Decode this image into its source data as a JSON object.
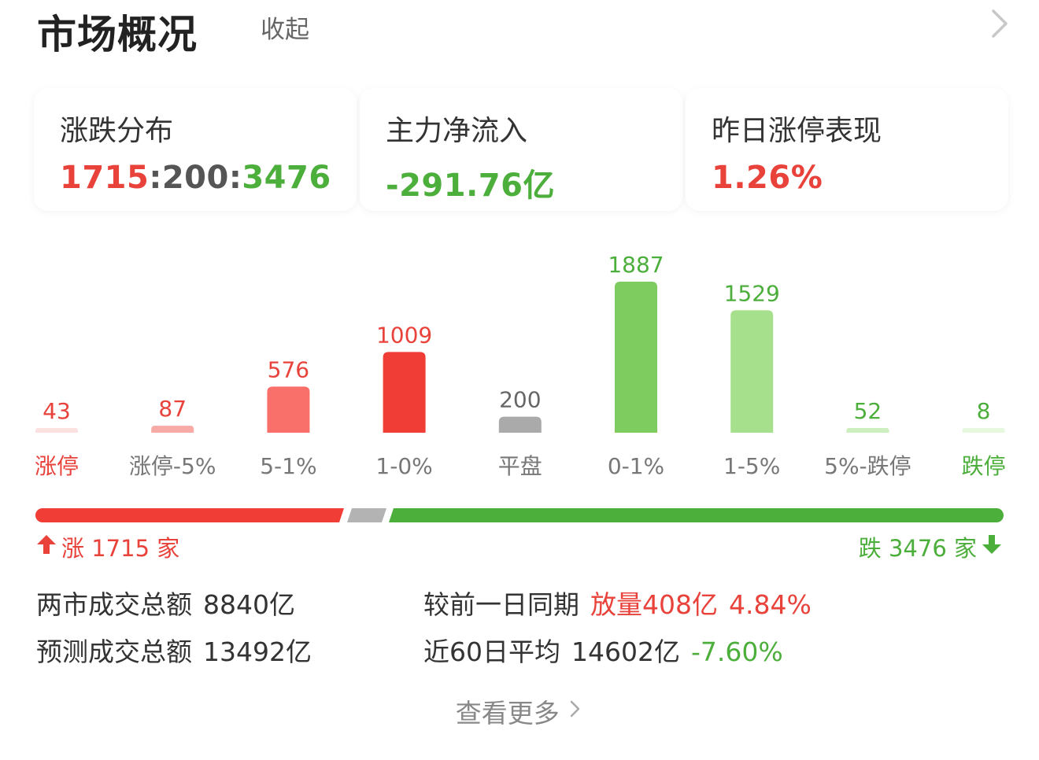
{
  "header": {
    "title": "市场概况",
    "collapse_label": "收起"
  },
  "cards": [
    {
      "label": "涨跌分布",
      "up": "1715",
      "sep1": ":",
      "flat": "200",
      "sep2": ":",
      "down": "3476"
    },
    {
      "label": "主力净流入",
      "value": "-291.76亿"
    },
    {
      "label": "昨日涨停表现",
      "value": "1.26%"
    }
  ],
  "chart_data": {
    "type": "bar",
    "categories": [
      "涨停",
      "涨停-5%",
      "5-1%",
      "1-0%",
      "平盘",
      "0-1%",
      "1-5%",
      "5%-跌停",
      "跌停"
    ],
    "values": [
      43,
      87,
      576,
      1009,
      200,
      1887,
      1529,
      52,
      8
    ],
    "colors": [
      "#fbe1e0",
      "#f7aaa6",
      "#f96f69",
      "#f03e36",
      "#aaaaaa",
      "#7ecb5f",
      "#a6e08d",
      "#cdefc0",
      "#e6f8de"
    ],
    "label_colors": [
      "#e8423a",
      "#e8423a",
      "#e8423a",
      "#e8423a",
      "#666666",
      "#4cae3b",
      "#4cae3b",
      "#4cae3b",
      "#4cae3b"
    ],
    "category_colors": [
      "#e8423a",
      "#777777",
      "#777777",
      "#777777",
      "#777777",
      "#777777",
      "#777777",
      "#777777",
      "#4cae3b"
    ]
  },
  "distribution": {
    "up_text": "涨 1715 家",
    "down_text": "跌 3476 家",
    "up_color": "#e8423a",
    "flat_color": "#b3b3b3",
    "down_color": "#4cae3b"
  },
  "stats": {
    "turnover_label": "两市成交总额",
    "turnover_value": "8840亿",
    "predicted_label": "预测成交总额",
    "predicted_value": "13492亿",
    "compare_label": "较前一日同期",
    "compare_value": "放量408亿",
    "compare_pct": "4.84%",
    "avg60_label": "近60日平均",
    "avg60_value": "14602亿",
    "avg60_pct": "-7.60%"
  },
  "footer": {
    "more_label": "查看更多"
  },
  "icons": {
    "header_chevron": "chevron-right-icon",
    "up_arrow": "arrow-up-icon",
    "down_arrow": "arrow-down-icon",
    "more_chevron": "chevron-right-icon"
  }
}
